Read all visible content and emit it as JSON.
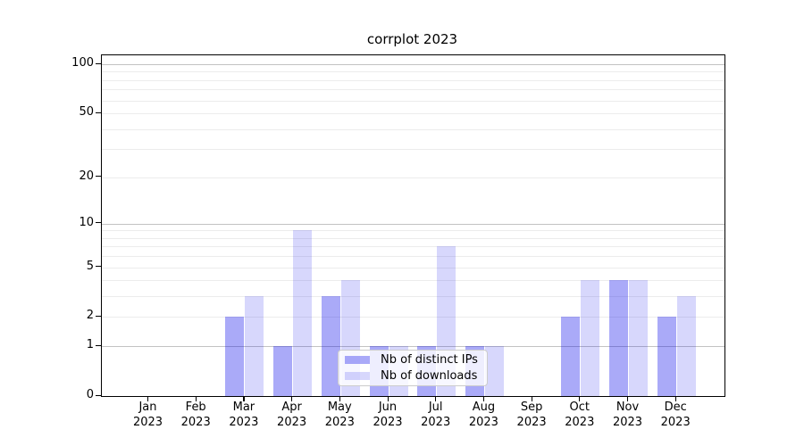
{
  "figure": {
    "background": "#ffffff"
  },
  "chart_data": {
    "type": "bar",
    "title": "corrplot 2023",
    "categories": [
      "Jan 2023",
      "Feb 2023",
      "Mar 2023",
      "Apr 2023",
      "May 2023",
      "Jun 2023",
      "Jul 2023",
      "Aug 2023",
      "Sep 2023",
      "Oct 2023",
      "Nov 2023",
      "Dec 2023"
    ],
    "x_labels": [
      {
        "month": "Jan",
        "year": "2023"
      },
      {
        "month": "Feb",
        "year": "2023"
      },
      {
        "month": "Mar",
        "year": "2023"
      },
      {
        "month": "Apr",
        "year": "2023"
      },
      {
        "month": "May",
        "year": "2023"
      },
      {
        "month": "Jun",
        "year": "2023"
      },
      {
        "month": "Jul",
        "year": "2023"
      },
      {
        "month": "Aug",
        "year": "2023"
      },
      {
        "month": "Sep",
        "year": "2023"
      },
      {
        "month": "Oct",
        "year": "2023"
      },
      {
        "month": "Nov",
        "year": "2023"
      },
      {
        "month": "Dec",
        "year": "2023"
      }
    ],
    "series": [
      {
        "name": "Nb of distinct IPs",
        "color": "rgba(5,5,235,0.34)",
        "values": [
          0,
          0,
          2,
          1,
          3,
          1,
          1,
          1,
          0,
          2,
          4,
          2
        ]
      },
      {
        "name": "Nb of downloads",
        "color": "rgba(5,5,235,0.16)",
        "values": [
          0,
          0,
          3,
          9,
          4,
          1,
          7,
          1,
          0,
          4,
          4,
          3
        ]
      }
    ],
    "y_axis": {
      "scale": "log1p",
      "tick_labels": [
        100,
        50,
        20,
        10,
        5,
        2,
        1,
        0
      ],
      "major_gridlines": [
        1,
        10,
        100
      ],
      "minor_gridlines": [
        2,
        3,
        4,
        5,
        6,
        7,
        8,
        9,
        20,
        30,
        40,
        50,
        60,
        70,
        80,
        90
      ],
      "ylim": [
        0,
        113
      ]
    },
    "grid": "on",
    "legend_position": "lower center",
    "colors": {
      "bar_distinct_ips": "#ababfa",
      "bar_downloads": "#d9d9fc",
      "major_grid": "#c2c2c2",
      "minor_grid": "#ececec",
      "axis": "#000000"
    }
  }
}
